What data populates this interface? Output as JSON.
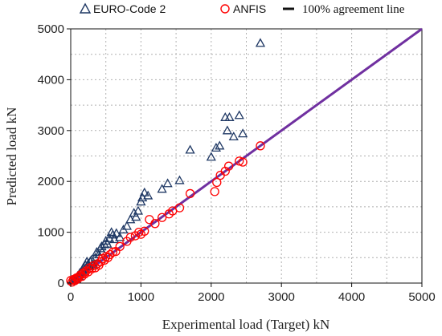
{
  "chart_data": {
    "type": "scatter",
    "xlabel": "Experimental load (Target)  kN",
    "ylabel": "Predicted load  kN",
    "xlim": [
      0,
      5000
    ],
    "ylim": [
      0,
      5000
    ],
    "x_ticks": [
      "0",
      "1000",
      "2000",
      "3000",
      "4000",
      "5000"
    ],
    "y_ticks": [
      "0",
      "1000",
      "2000",
      "3000",
      "4000",
      "5000"
    ],
    "grid": true,
    "legend_position": "top",
    "agreement_line": {
      "label": "100% agreement line",
      "from": [
        0,
        0
      ],
      "to": [
        5000,
        5000
      ],
      "color": "#7030a0"
    },
    "series": [
      {
        "name": "EURO-Code 2",
        "marker": "triangle",
        "color": "#1f3864",
        "points": [
          [
            20,
            40
          ],
          [
            40,
            60
          ],
          [
            60,
            90
          ],
          [
            80,
            80
          ],
          [
            100,
            140
          ],
          [
            120,
            130
          ],
          [
            130,
            200
          ],
          [
            150,
            220
          ],
          [
            170,
            250
          ],
          [
            180,
            300
          ],
          [
            200,
            270
          ],
          [
            210,
            350
          ],
          [
            230,
            420
          ],
          [
            250,
            380
          ],
          [
            260,
            330
          ],
          [
            280,
            430
          ],
          [
            300,
            460
          ],
          [
            320,
            360
          ],
          [
            350,
            500
          ],
          [
            370,
            610
          ],
          [
            400,
            560
          ],
          [
            420,
            680
          ],
          [
            440,
            720
          ],
          [
            450,
            620
          ],
          [
            480,
            760
          ],
          [
            500,
            830
          ],
          [
            520,
            770
          ],
          [
            550,
            880
          ],
          [
            580,
            1000
          ],
          [
            600,
            950
          ],
          [
            620,
            860
          ],
          [
            650,
            980
          ],
          [
            700,
            900
          ],
          [
            750,
            1050
          ],
          [
            800,
            1120
          ],
          [
            850,
            1250
          ],
          [
            900,
            1380
          ],
          [
            930,
            1300
          ],
          [
            960,
            1420
          ],
          [
            1000,
            1600
          ],
          [
            1020,
            1680
          ],
          [
            1050,
            1780
          ],
          [
            1100,
            1720
          ],
          [
            1300,
            1850
          ],
          [
            1380,
            1960
          ],
          [
            1550,
            2020
          ],
          [
            1700,
            2620
          ],
          [
            2000,
            2480
          ],
          [
            2070,
            2660
          ],
          [
            2120,
            2700
          ],
          [
            2200,
            3260
          ],
          [
            2230,
            3000
          ],
          [
            2260,
            3260
          ],
          [
            2320,
            2880
          ],
          [
            2400,
            3300
          ],
          [
            2450,
            2940
          ],
          [
            2700,
            4720
          ]
        ]
      },
      {
        "name": "ANFIS",
        "marker": "circle",
        "color": "#ff0000",
        "points": [
          [
            0,
            50
          ],
          [
            20,
            20
          ],
          [
            40,
            70
          ],
          [
            60,
            50
          ],
          [
            80,
            100
          ],
          [
            100,
            80
          ],
          [
            120,
            130
          ],
          [
            140,
            160
          ],
          [
            160,
            130
          ],
          [
            180,
            200
          ],
          [
            200,
            180
          ],
          [
            220,
            240
          ],
          [
            250,
            220
          ],
          [
            270,
            300
          ],
          [
            300,
            280
          ],
          [
            320,
            340
          ],
          [
            350,
            300
          ],
          [
            380,
            380
          ],
          [
            400,
            350
          ],
          [
            430,
            420
          ],
          [
            450,
            480
          ],
          [
            480,
            450
          ],
          [
            500,
            520
          ],
          [
            530,
            500
          ],
          [
            560,
            560
          ],
          [
            600,
            610
          ],
          [
            640,
            620
          ],
          [
            700,
            720
          ],
          [
            800,
            820
          ],
          [
            850,
            900
          ],
          [
            920,
            930
          ],
          [
            970,
            1000
          ],
          [
            1000,
            960
          ],
          [
            1050,
            1020
          ],
          [
            1120,
            1250
          ],
          [
            1200,
            1170
          ],
          [
            1300,
            1290
          ],
          [
            1400,
            1360
          ],
          [
            1450,
            1420
          ],
          [
            1550,
            1480
          ],
          [
            1700,
            1760
          ],
          [
            2050,
            1800
          ],
          [
            2080,
            1980
          ],
          [
            2130,
            2120
          ],
          [
            2200,
            2200
          ],
          [
            2250,
            2300
          ],
          [
            2400,
            2400
          ],
          [
            2450,
            2380
          ],
          [
            2700,
            2700
          ]
        ]
      }
    ]
  }
}
